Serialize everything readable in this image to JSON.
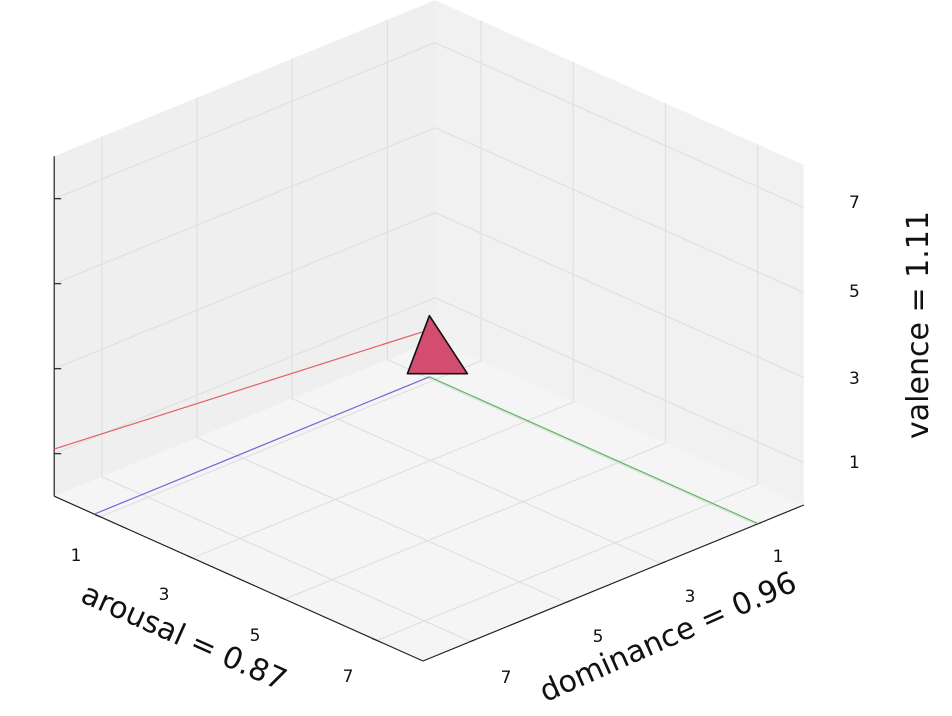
{
  "chart_data": {
    "type": "scatter",
    "projection": "3d",
    "grid": true,
    "axes": {
      "x": {
        "variable": "arousal",
        "label": "arousal = 0.87",
        "ticks": [
          "1",
          "3",
          "5",
          "7"
        ],
        "range": [
          0,
          8
        ]
      },
      "y": {
        "variable": "dominance",
        "label": "dominance = 0.96",
        "ticks": [
          "1",
          "3",
          "5",
          "7"
        ],
        "range": [
          0,
          8
        ]
      },
      "z": {
        "variable": "valence",
        "label": "valence = 1.11",
        "ticks": [
          "1",
          "3",
          "5",
          "7"
        ],
        "range": [
          0,
          8
        ]
      }
    },
    "point": {
      "arousal": 0.87,
      "dominance": 0.96,
      "valence": 1.11,
      "marker": "triangle",
      "color": "#d44c6f"
    },
    "projection_line_colors": {
      "arousal": "#6b6bd6",
      "dominance": "#5fb85f",
      "valence": "#e86060"
    },
    "pane_color": "#f2f2f2",
    "grid_color": "#e0e0e0"
  }
}
